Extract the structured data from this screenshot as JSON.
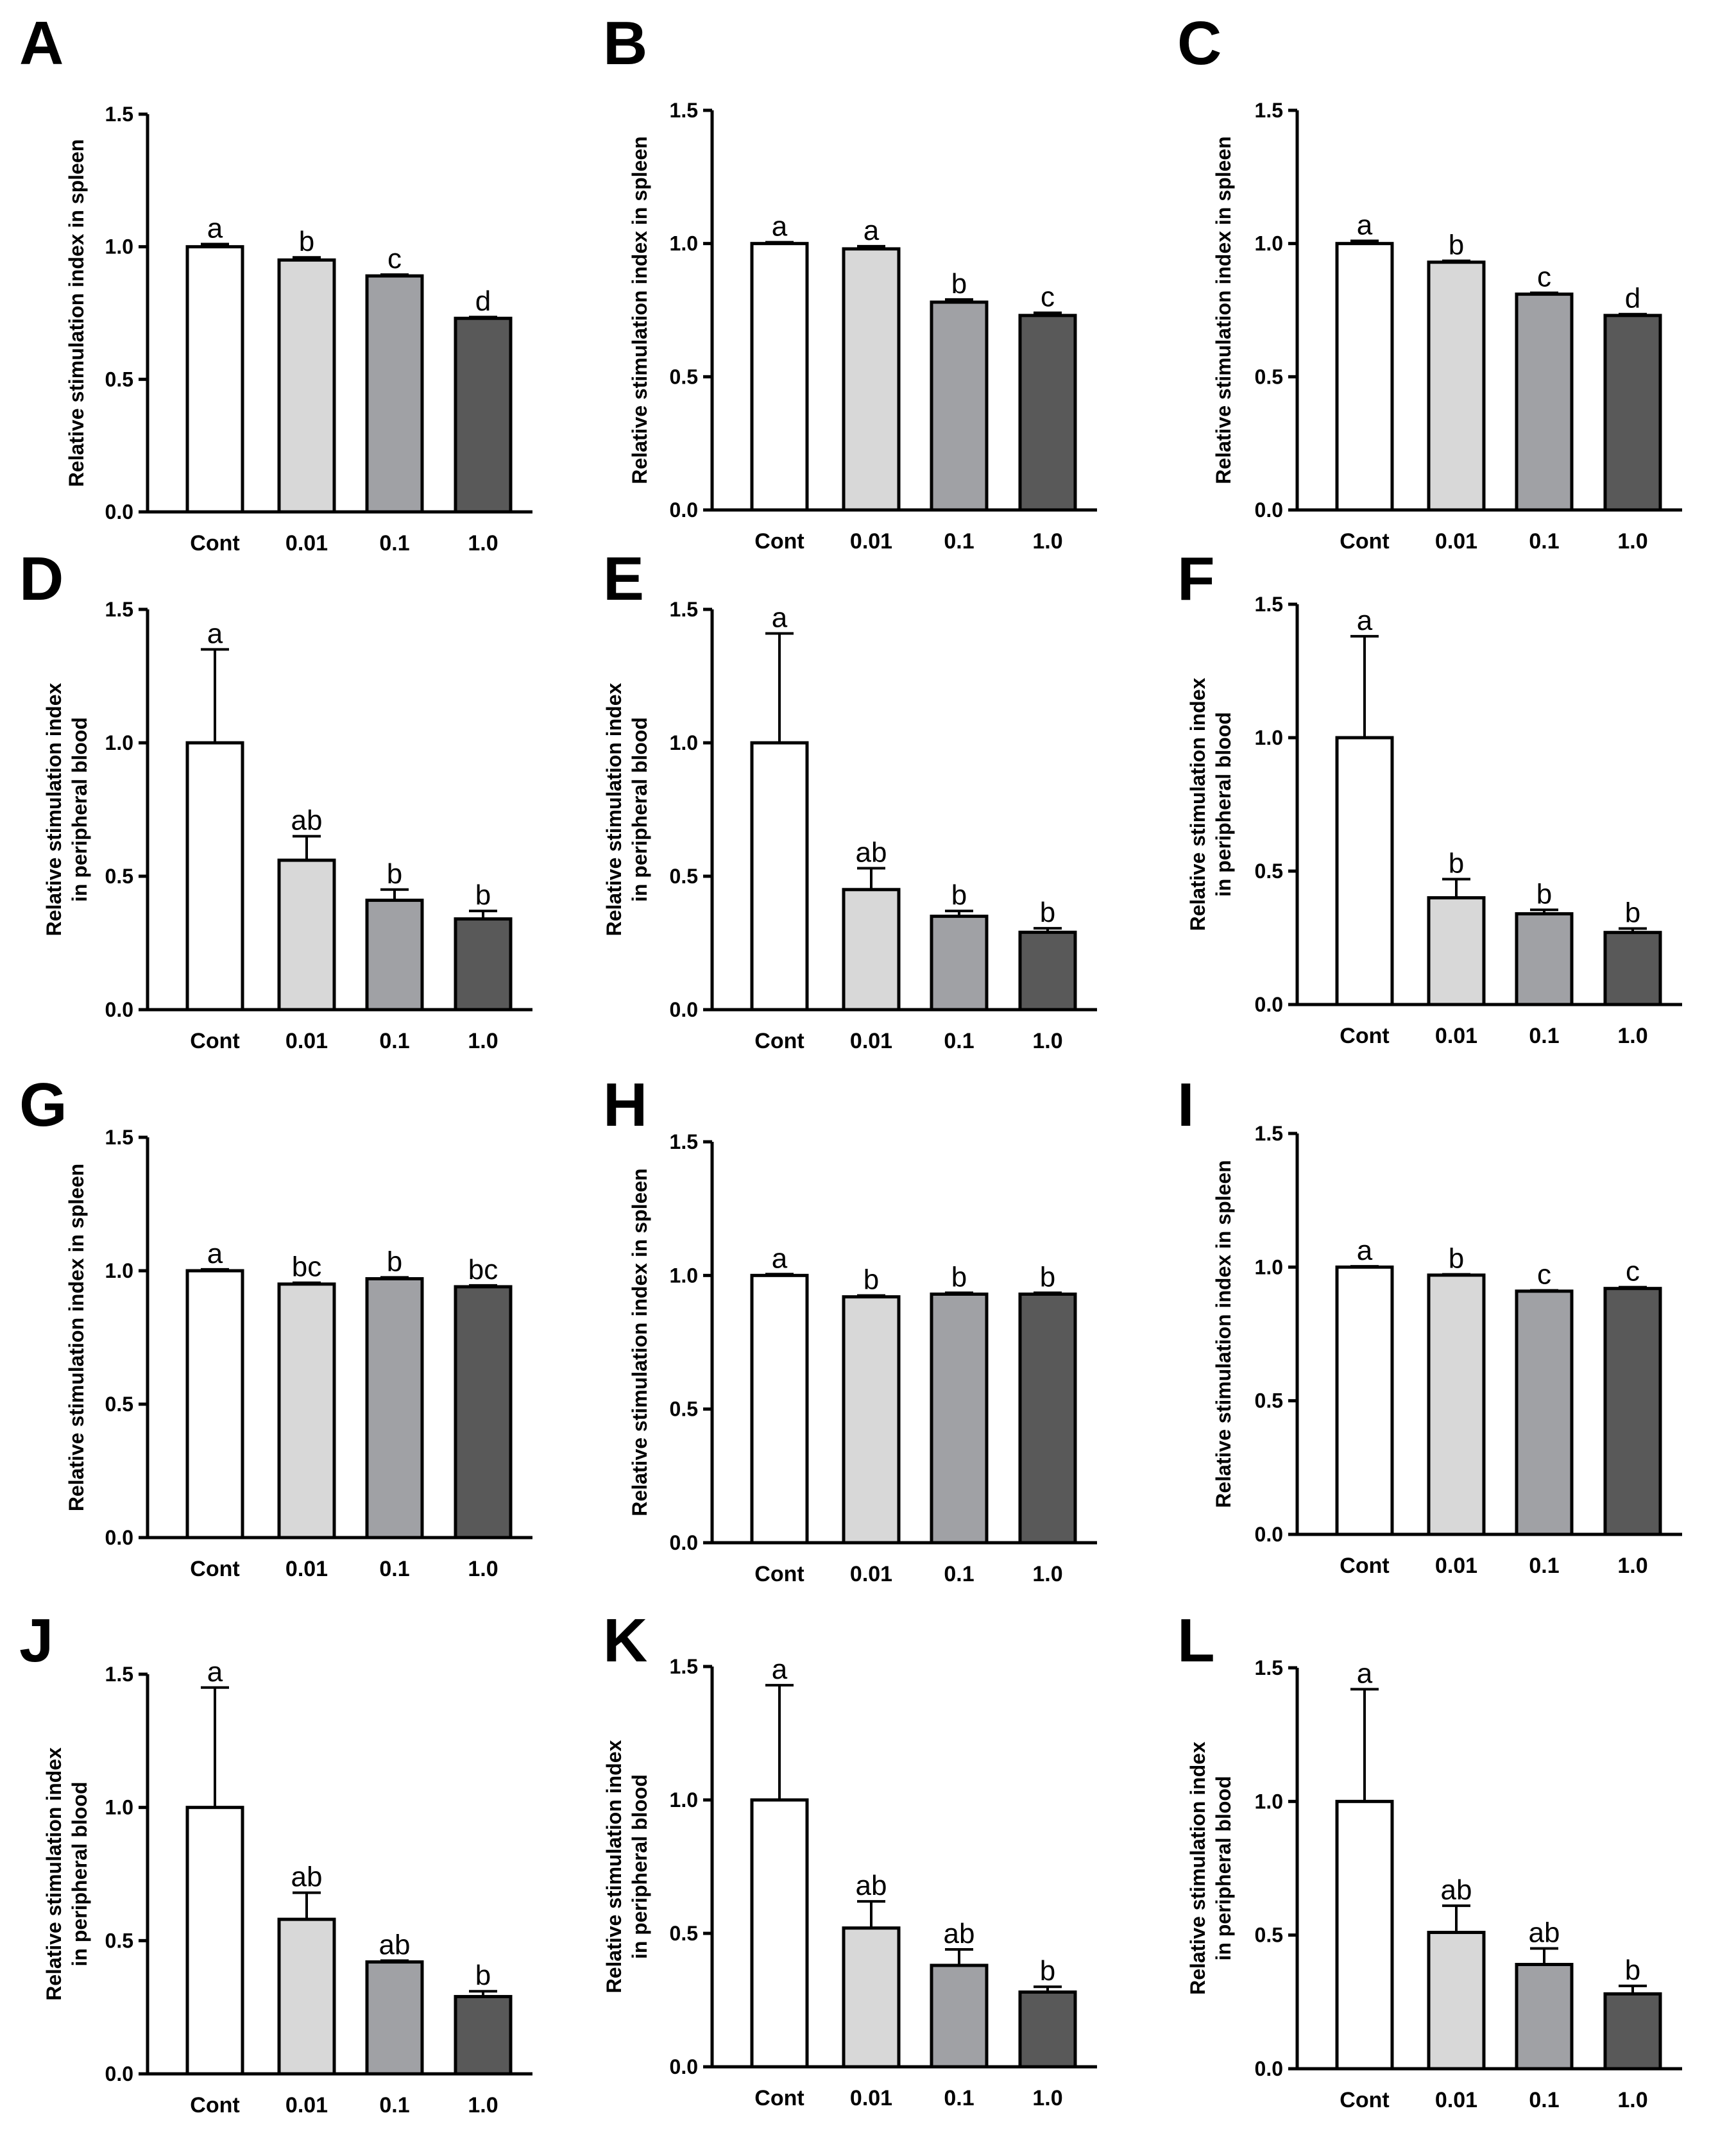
{
  "colors": {
    "axis": "#000000",
    "bar_fills": [
      "#ffffff",
      "#d8d8d8",
      "#a0a1a5",
      "#595959"
    ]
  },
  "chart_data": [
    {
      "panel": "A",
      "type": "bar",
      "categories": [
        "Cont",
        "0.01",
        "0.1",
        "1.0"
      ],
      "values": [
        1.0,
        0.95,
        0.89,
        0.73
      ],
      "errors": [
        0.01,
        0.01,
        0.005,
        0.005
      ],
      "sig_labels": [
        "a",
        "b",
        "c",
        "d"
      ],
      "ylabel": [
        "Relative stimulation index in spleen"
      ],
      "ylim": [
        0,
        1.5
      ],
      "yticks": [
        "0.0",
        "0.5",
        "1.0",
        "1.5"
      ]
    },
    {
      "panel": "B",
      "type": "bar",
      "categories": [
        "Cont",
        "0.01",
        "0.1",
        "1.0"
      ],
      "values": [
        1.0,
        0.98,
        0.78,
        0.73
      ],
      "errors": [
        0.005,
        0.01,
        0.01,
        0.01
      ],
      "sig_labels": [
        "a",
        "a",
        "b",
        "c"
      ],
      "ylabel": [
        "Relative stimulation index in spleen"
      ],
      "ylim": [
        0,
        1.5
      ],
      "yticks": [
        "0.0",
        "0.5",
        "1.0",
        "1.5"
      ]
    },
    {
      "panel": "C",
      "type": "bar",
      "categories": [
        "Cont",
        "0.01",
        "0.1",
        "1.0"
      ],
      "values": [
        1.0,
        0.93,
        0.81,
        0.73
      ],
      "errors": [
        0.01,
        0.005,
        0.005,
        0.005
      ],
      "sig_labels": [
        "a",
        "b",
        "c",
        "d"
      ],
      "ylabel": [
        "Relative stimulation index in spleen"
      ],
      "ylim": [
        0,
        1.5
      ],
      "yticks": [
        "0.0",
        "0.5",
        "1.0",
        "1.5"
      ]
    },
    {
      "panel": "D",
      "type": "bar",
      "categories": [
        "Cont",
        "0.01",
        "0.1",
        "1.0"
      ],
      "values": [
        1.0,
        0.56,
        0.41,
        0.34
      ],
      "errors": [
        0.35,
        0.09,
        0.04,
        0.03
      ],
      "sig_labels": [
        "a",
        "ab",
        "b",
        "b"
      ],
      "ylabel": [
        "Relative stimulation index",
        "in peripheral blood"
      ],
      "ylim": [
        0,
        1.5
      ],
      "yticks": [
        "0.0",
        "0.5",
        "1.0",
        "1.5"
      ]
    },
    {
      "panel": "E",
      "type": "bar",
      "categories": [
        "Cont",
        "0.01",
        "0.1",
        "1.0"
      ],
      "values": [
        1.0,
        0.45,
        0.35,
        0.29
      ],
      "errors": [
        0.41,
        0.08,
        0.02,
        0.015
      ],
      "sig_labels": [
        "a",
        "ab",
        "b",
        "b"
      ],
      "ylabel": [
        "Relative stimulation index",
        "in peripheral blood"
      ],
      "ylim": [
        0,
        1.5
      ],
      "yticks": [
        "0.0",
        "0.5",
        "1.0",
        "1.5"
      ]
    },
    {
      "panel": "F",
      "type": "bar",
      "categories": [
        "Cont",
        "0.01",
        "0.1",
        "1.0"
      ],
      "values": [
        1.0,
        0.4,
        0.34,
        0.27
      ],
      "errors": [
        0.38,
        0.07,
        0.015,
        0.015
      ],
      "sig_labels": [
        "a",
        "b",
        "b",
        "b"
      ],
      "ylabel": [
        "Relative stimulation index",
        "in peripheral blood"
      ],
      "ylim": [
        0,
        1.5
      ],
      "yticks": [
        "0.0",
        "0.5",
        "1.0",
        "1.5"
      ]
    },
    {
      "panel": "G",
      "type": "bar",
      "categories": [
        "Cont",
        "0.01",
        "0.1",
        "1.0"
      ],
      "values": [
        1.0,
        0.95,
        0.97,
        0.94
      ],
      "errors": [
        0.005,
        0.005,
        0.005,
        0.005
      ],
      "sig_labels": [
        "a",
        "bc",
        "b",
        "bc"
      ],
      "ylabel": [
        "Relative stimulation index in spleen"
      ],
      "ylim": [
        0,
        1.5
      ],
      "yticks": [
        "0.0",
        "0.5",
        "1.0",
        "1.5"
      ]
    },
    {
      "panel": "H",
      "type": "bar",
      "categories": [
        "Cont",
        "0.01",
        "0.1",
        "1.0"
      ],
      "values": [
        1.0,
        0.92,
        0.93,
        0.93
      ],
      "errors": [
        0.005,
        0.005,
        0.005,
        0.005
      ],
      "sig_labels": [
        "a",
        "b",
        "b",
        "b"
      ],
      "ylabel": [
        "Relative stimulation index in spleen"
      ],
      "ylim": [
        0,
        1.5
      ],
      "yticks": [
        "0.0",
        "0.5",
        "1.0",
        "1.5"
      ]
    },
    {
      "panel": "I",
      "type": "bar",
      "categories": [
        "Cont",
        "0.01",
        "0.1",
        "1.0"
      ],
      "values": [
        1.0,
        0.97,
        0.91,
        0.92
      ],
      "errors": [
        0.003,
        0.003,
        0.003,
        0.005
      ],
      "sig_labels": [
        "a",
        "b",
        "c",
        "c"
      ],
      "ylabel": [
        "Relative stimulation index in spleen"
      ],
      "ylim": [
        0,
        1.5
      ],
      "yticks": [
        "0.0",
        "0.5",
        "1.0",
        "1.5"
      ]
    },
    {
      "panel": "J",
      "type": "bar",
      "categories": [
        "Cont",
        "0.01",
        "0.1",
        "1.0"
      ],
      "values": [
        1.0,
        0.58,
        0.42,
        0.29
      ],
      "errors": [
        0.45,
        0.1,
        0.005,
        0.02
      ],
      "sig_labels": [
        "a",
        "ab",
        "ab",
        "b"
      ],
      "ylabel": [
        "Relative stimulation index",
        "in peripheral blood"
      ],
      "ylim": [
        0,
        1.5
      ],
      "yticks": [
        "0.0",
        "0.5",
        "1.0",
        "1.5"
      ]
    },
    {
      "panel": "K",
      "type": "bar",
      "categories": [
        "Cont",
        "0.01",
        "0.1",
        "1.0"
      ],
      "values": [
        1.0,
        0.52,
        0.38,
        0.28
      ],
      "errors": [
        0.43,
        0.1,
        0.06,
        0.02
      ],
      "sig_labels": [
        "a",
        "ab",
        "ab",
        "b"
      ],
      "ylabel": [
        "Relative stimulation index",
        "in peripheral blood"
      ],
      "ylim": [
        0,
        1.5
      ],
      "yticks": [
        "0.0",
        "0.5",
        "1.0",
        "1.5"
      ]
    },
    {
      "panel": "L",
      "type": "bar",
      "categories": [
        "Cont",
        "0.01",
        "0.1",
        "1.0"
      ],
      "values": [
        1.0,
        0.51,
        0.39,
        0.28
      ],
      "errors": [
        0.42,
        0.1,
        0.06,
        0.03
      ],
      "sig_labels": [
        "a",
        "ab",
        "ab",
        "b"
      ],
      "ylabel": [
        "Relative stimulation index",
        "in peripheral blood"
      ],
      "ylim": [
        0,
        1.5
      ],
      "yticks": [
        "0.0",
        "0.5",
        "1.0",
        "1.5"
      ]
    }
  ]
}
